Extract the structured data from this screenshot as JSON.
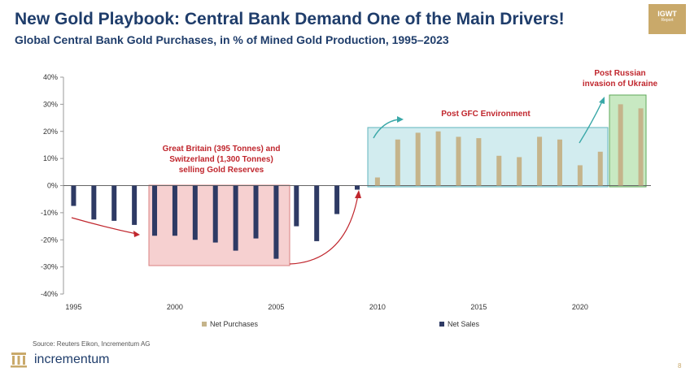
{
  "header": {
    "title": "New Gold Playbook: Central Bank Demand One of the Main Drivers!",
    "subtitle": "Global Central Bank Gold Purchases, in % of Mined Gold Production, 1995–2023",
    "badge": "IGWT",
    "badge_sub": "Report"
  },
  "footer": {
    "source": "Source: Reuters Eikon, Incrementum AG",
    "brand": "incrementum",
    "page": "8"
  },
  "colors": {
    "net_purchases": "#c5b48b",
    "net_sales": "#2e3a64",
    "annotation": "#c0262d",
    "box_red": "#f6d0d0",
    "box_teal": "#d2ecef",
    "box_green": "#c8e9c2"
  },
  "chart_data": {
    "type": "bar",
    "ylim": [
      -0.4,
      0.4
    ],
    "y_ticks": [
      "40%",
      "30%",
      "20%",
      "10%",
      "0%",
      "-10%",
      "-20%",
      "-30%",
      "-40%"
    ],
    "x_ticks": [
      "1995",
      "2000",
      "2005",
      "2010",
      "2015",
      "2020"
    ],
    "x": [
      1995,
      1996,
      1997,
      1998,
      1999,
      2000,
      2001,
      2002,
      2003,
      2004,
      2005,
      2006,
      2007,
      2008,
      2009,
      2010,
      2011,
      2012,
      2013,
      2014,
      2015,
      2016,
      2017,
      2018,
      2019,
      2020,
      2021,
      2022,
      2023
    ],
    "series": [
      {
        "name": "Net Purchases",
        "values": [
          null,
          null,
          null,
          null,
          null,
          null,
          null,
          null,
          null,
          null,
          null,
          null,
          null,
          null,
          null,
          0.03,
          0.17,
          0.195,
          0.2,
          0.18,
          0.175,
          0.11,
          0.105,
          0.18,
          0.17,
          0.075,
          0.125,
          0.3,
          0.285
        ]
      },
      {
        "name": "Net Sales",
        "values": [
          -0.075,
          -0.125,
          -0.13,
          -0.145,
          -0.185,
          -0.185,
          -0.2,
          -0.21,
          -0.24,
          -0.195,
          -0.27,
          -0.15,
          -0.205,
          -0.105,
          -0.015,
          null,
          null,
          null,
          null,
          null,
          null,
          null,
          null,
          null,
          null,
          null,
          null,
          null,
          null
        ]
      }
    ],
    "legend": [
      "Net Purchases",
      "Net Sales"
    ],
    "annotations": [
      "Great Britain (395 Tonnes) and Switzerland (1,300 Tonnes) selling Gold Reserves",
      "Post GFC Environment",
      "Post Russian invasion of Ukraine"
    ]
  }
}
